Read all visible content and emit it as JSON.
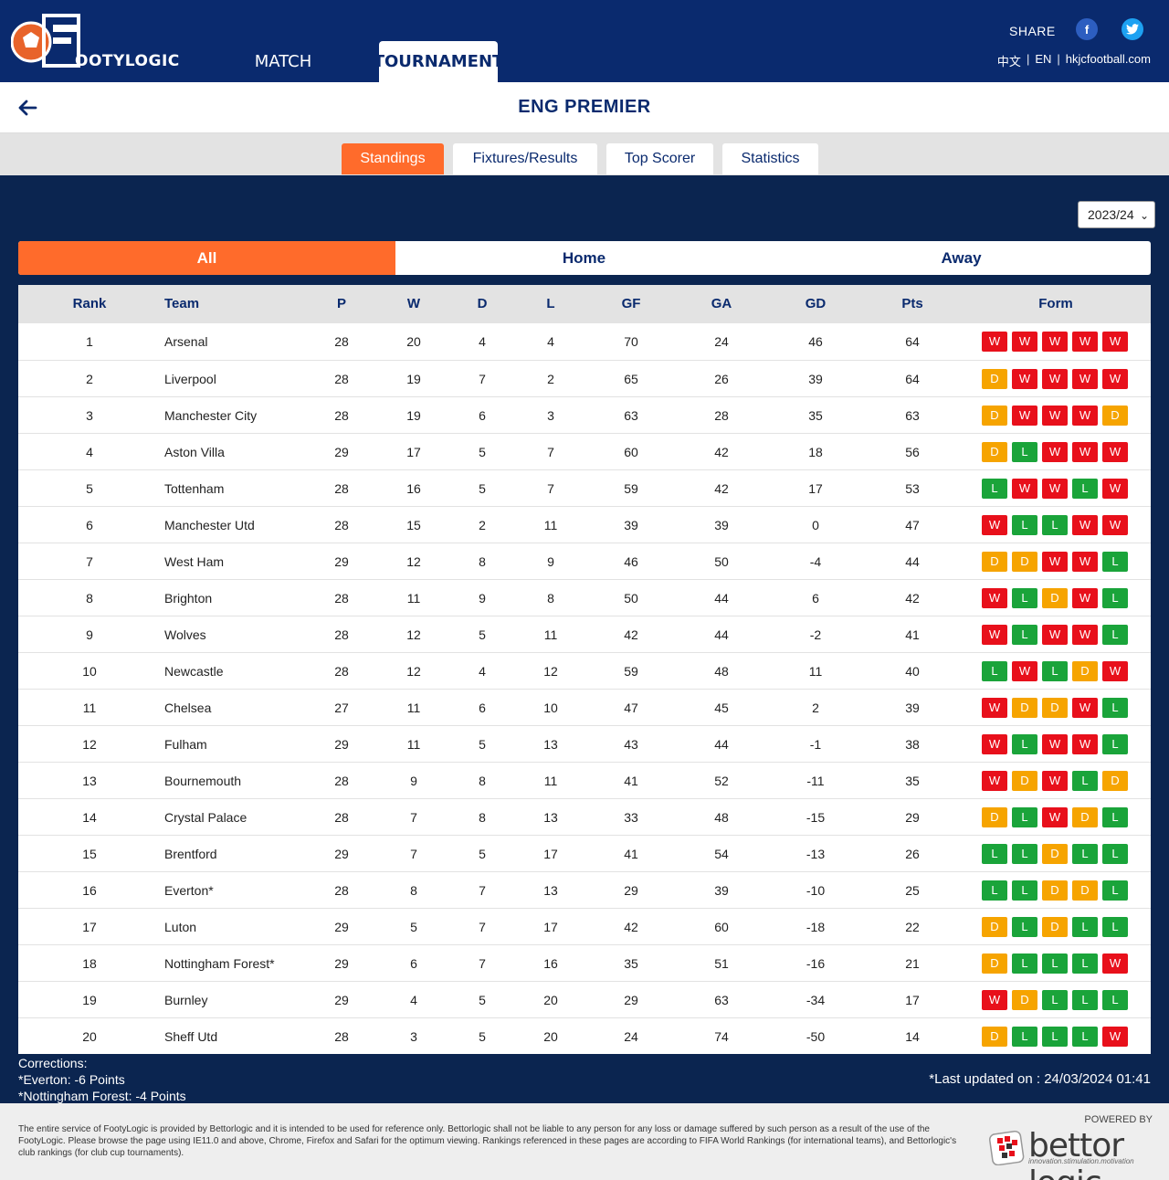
{
  "header": {
    "logo_text": "OOTYLOGIC",
    "nav": {
      "match": "MATCH",
      "tournament": "TOURNAMENT"
    },
    "share_label": "SHARE",
    "lang": {
      "zh": "中文",
      "en": "EN",
      "site": "hkjcfootball.com"
    },
    "social": {
      "facebook": "f",
      "twitter": "t"
    }
  },
  "title": "ENG PREMIER",
  "subtabs": [
    "Standings",
    "Fixtures/Results",
    "Top Scorer",
    "Statistics"
  ],
  "season": "2023/24",
  "scope_tabs": [
    "All",
    "Home",
    "Away"
  ],
  "columns": [
    "Rank",
    "Team",
    "P",
    "W",
    "D",
    "L",
    "GF",
    "GA",
    "GD",
    "Pts",
    "Form"
  ],
  "rows": [
    {
      "rank": "1",
      "team": "Arsenal",
      "p": "28",
      "w": "20",
      "d": "4",
      "l": "4",
      "gf": "70",
      "ga": "24",
      "gd": "46",
      "pts": "64",
      "form": [
        "W",
        "W",
        "W",
        "W",
        "W"
      ]
    },
    {
      "rank": "2",
      "team": "Liverpool",
      "p": "28",
      "w": "19",
      "d": "7",
      "l": "2",
      "gf": "65",
      "ga": "26",
      "gd": "39",
      "pts": "64",
      "form": [
        "D",
        "W",
        "W",
        "W",
        "W"
      ]
    },
    {
      "rank": "3",
      "team": "Manchester City",
      "p": "28",
      "w": "19",
      "d": "6",
      "l": "3",
      "gf": "63",
      "ga": "28",
      "gd": "35",
      "pts": "63",
      "form": [
        "D",
        "W",
        "W",
        "W",
        "D"
      ]
    },
    {
      "rank": "4",
      "team": "Aston Villa",
      "p": "29",
      "w": "17",
      "d": "5",
      "l": "7",
      "gf": "60",
      "ga": "42",
      "gd": "18",
      "pts": "56",
      "form": [
        "D",
        "L",
        "W",
        "W",
        "W"
      ]
    },
    {
      "rank": "5",
      "team": "Tottenham",
      "p": "28",
      "w": "16",
      "d": "5",
      "l": "7",
      "gf": "59",
      "ga": "42",
      "gd": "17",
      "pts": "53",
      "form": [
        "L",
        "W",
        "W",
        "L",
        "W"
      ]
    },
    {
      "rank": "6",
      "team": "Manchester Utd",
      "p": "28",
      "w": "15",
      "d": "2",
      "l": "11",
      "gf": "39",
      "ga": "39",
      "gd": "0",
      "pts": "47",
      "form": [
        "W",
        "L",
        "L",
        "W",
        "W"
      ]
    },
    {
      "rank": "7",
      "team": "West Ham",
      "p": "29",
      "w": "12",
      "d": "8",
      "l": "9",
      "gf": "46",
      "ga": "50",
      "gd": "-4",
      "pts": "44",
      "form": [
        "D",
        "D",
        "W",
        "W",
        "L"
      ]
    },
    {
      "rank": "8",
      "team": "Brighton",
      "p": "28",
      "w": "11",
      "d": "9",
      "l": "8",
      "gf": "50",
      "ga": "44",
      "gd": "6",
      "pts": "42",
      "form": [
        "W",
        "L",
        "D",
        "W",
        "L"
      ]
    },
    {
      "rank": "9",
      "team": "Wolves",
      "p": "28",
      "w": "12",
      "d": "5",
      "l": "11",
      "gf": "42",
      "ga": "44",
      "gd": "-2",
      "pts": "41",
      "form": [
        "W",
        "L",
        "W",
        "W",
        "L"
      ]
    },
    {
      "rank": "10",
      "team": "Newcastle",
      "p": "28",
      "w": "12",
      "d": "4",
      "l": "12",
      "gf": "59",
      "ga": "48",
      "gd": "11",
      "pts": "40",
      "form": [
        "L",
        "W",
        "L",
        "D",
        "W"
      ]
    },
    {
      "rank": "11",
      "team": "Chelsea",
      "p": "27",
      "w": "11",
      "d": "6",
      "l": "10",
      "gf": "47",
      "ga": "45",
      "gd": "2",
      "pts": "39",
      "form": [
        "W",
        "D",
        "D",
        "W",
        "L"
      ]
    },
    {
      "rank": "12",
      "team": "Fulham",
      "p": "29",
      "w": "11",
      "d": "5",
      "l": "13",
      "gf": "43",
      "ga": "44",
      "gd": "-1",
      "pts": "38",
      "form": [
        "W",
        "L",
        "W",
        "W",
        "L"
      ]
    },
    {
      "rank": "13",
      "team": "Bournemouth",
      "p": "28",
      "w": "9",
      "d": "8",
      "l": "11",
      "gf": "41",
      "ga": "52",
      "gd": "-11",
      "pts": "35",
      "form": [
        "W",
        "D",
        "W",
        "L",
        "D"
      ]
    },
    {
      "rank": "14",
      "team": "Crystal Palace",
      "p": "28",
      "w": "7",
      "d": "8",
      "l": "13",
      "gf": "33",
      "ga": "48",
      "gd": "-15",
      "pts": "29",
      "form": [
        "D",
        "L",
        "W",
        "D",
        "L"
      ]
    },
    {
      "rank": "15",
      "team": "Brentford",
      "p": "29",
      "w": "7",
      "d": "5",
      "l": "17",
      "gf": "41",
      "ga": "54",
      "gd": "-13",
      "pts": "26",
      "form": [
        "L",
        "L",
        "D",
        "L",
        "L"
      ]
    },
    {
      "rank": "16",
      "team": "Everton*",
      "p": "28",
      "w": "8",
      "d": "7",
      "l": "13",
      "gf": "29",
      "ga": "39",
      "gd": "-10",
      "pts": "25",
      "form": [
        "L",
        "L",
        "D",
        "D",
        "L"
      ]
    },
    {
      "rank": "17",
      "team": "Luton",
      "p": "29",
      "w": "5",
      "d": "7",
      "l": "17",
      "gf": "42",
      "ga": "60",
      "gd": "-18",
      "pts": "22",
      "form": [
        "D",
        "L",
        "D",
        "L",
        "L"
      ]
    },
    {
      "rank": "18",
      "team": "Nottingham Forest*",
      "p": "29",
      "w": "6",
      "d": "7",
      "l": "16",
      "gf": "35",
      "ga": "51",
      "gd": "-16",
      "pts": "21",
      "form": [
        "D",
        "L",
        "L",
        "L",
        "W"
      ]
    },
    {
      "rank": "19",
      "team": "Burnley",
      "p": "29",
      "w": "4",
      "d": "5",
      "l": "20",
      "gf": "29",
      "ga": "63",
      "gd": "-34",
      "pts": "17",
      "form": [
        "W",
        "D",
        "L",
        "L",
        "L"
      ]
    },
    {
      "rank": "20",
      "team": "Sheff Utd",
      "p": "28",
      "w": "3",
      "d": "5",
      "l": "20",
      "gf": "24",
      "ga": "74",
      "gd": "-50",
      "pts": "14",
      "form": [
        "D",
        "L",
        "L",
        "L",
        "W"
      ]
    }
  ],
  "corrections": [
    "Corrections:",
    "*Everton: -6 Points",
    "*Nottingham Forest: -4 Points"
  ],
  "last_updated": "*Last updated on : 24/03/2024 01:41",
  "footer": {
    "disclaimer": "The entire service of FootyLogic is provided by Bettorlogic and it is intended to be used for reference only. Bettorlogic shall not be liable to any person for any loss or damage suffered by such person as a result of the use of the FootyLogic. Please browse the page using IE11.0 and above, Chrome, Firefox and Safari for the optimum viewing. Rankings referenced in these pages are according to FIFA World Rankings (for international teams), and Bettorlogic's club rankings (for club cup tournaments).",
    "powered_by": "POWERED BY",
    "brand": "bettor logic",
    "tagline": "innovation.stimulation.motivation"
  },
  "colors": {
    "navy": "#0a2a6e",
    "orange": "#ff6b2b",
    "win": "#e8101b",
    "draw": "#f6a400",
    "loss": "#1aa43a"
  }
}
